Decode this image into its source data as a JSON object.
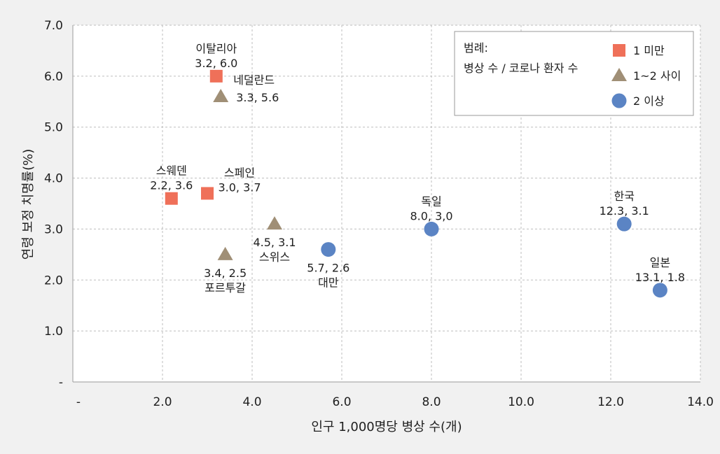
{
  "chart_data": {
    "type": "scatter",
    "title": "",
    "xlabel": "인구 1,000명당 병상 수(개)",
    "ylabel": "연령 보정 치명률(%)",
    "xlim": [
      0,
      14
    ],
    "ylim": [
      0,
      7
    ],
    "x_ticks": [
      {
        "value": 0,
        "label": "-"
      },
      {
        "value": 2,
        "label": "2.0"
      },
      {
        "value": 4,
        "label": "4.0"
      },
      {
        "value": 6,
        "label": "6.0"
      },
      {
        "value": 8,
        "label": "8.0"
      },
      {
        "value": 10,
        "label": "10.0"
      },
      {
        "value": 12,
        "label": "12.0"
      },
      {
        "value": 14,
        "label": "14.0"
      }
    ],
    "y_ticks": [
      {
        "value": 0,
        "label": "-"
      },
      {
        "value": 1,
        "label": "1.0"
      },
      {
        "value": 2,
        "label": "2.0"
      },
      {
        "value": 3,
        "label": "3.0"
      },
      {
        "value": 4,
        "label": "4.0"
      },
      {
        "value": 5,
        "label": "5.0"
      },
      {
        "value": 6,
        "label": "6.0"
      },
      {
        "value": 7,
        "label": "7.0"
      }
    ],
    "grid": true,
    "legend": {
      "position": "top-right",
      "title_line1": "범례:",
      "title_line2": "병상 수 / 코로나 환자 수",
      "entries": [
        {
          "key": "lt1",
          "label": "1 미만",
          "shape": "square",
          "color": "#ef7059"
        },
        {
          "key": "1to2",
          "label": "1~2 사이",
          "shape": "triangle",
          "color": "#a08f76"
        },
        {
          "key": "ge2",
          "label": "2 이상",
          "shape": "circle",
          "color": "#5b84c4"
        }
      ]
    },
    "points": [
      {
        "name": "이탈리아",
        "value_label": "3.2, 6.0",
        "x": 3.2,
        "y": 6.0,
        "group": "lt1",
        "label_pos": "above"
      },
      {
        "name": "네덜란드",
        "value_label": "3.3, 5.6",
        "x": 3.3,
        "y": 5.6,
        "group": "1to2",
        "label_pos": "right"
      },
      {
        "name": "스웨덴",
        "value_label": "2.2, 3.6",
        "x": 2.2,
        "y": 3.6,
        "group": "lt1",
        "label_pos": "above"
      },
      {
        "name": "스페인",
        "value_label": "3.0, 3.7",
        "x": 3.0,
        "y": 3.7,
        "group": "lt1",
        "label_pos": "upper-right"
      },
      {
        "name": "스위스",
        "value_label": "4.5, 3.1",
        "x": 4.5,
        "y": 3.1,
        "group": "1to2",
        "label_pos": "below"
      },
      {
        "name": "포르투갈",
        "value_label": "3.4, 2.5",
        "x": 3.4,
        "y": 2.5,
        "group": "1to2",
        "label_pos": "below"
      },
      {
        "name": "대만",
        "value_label": "5.7, 2.6",
        "x": 5.7,
        "y": 2.6,
        "group": "ge2",
        "label_pos": "below"
      },
      {
        "name": "독일",
        "value_label": "8.0, 3,0",
        "x": 8.0,
        "y": 3.0,
        "group": "ge2",
        "label_pos": "above"
      },
      {
        "name": "한국",
        "value_label": "12.3, 3.1",
        "x": 12.3,
        "y": 3.1,
        "group": "ge2",
        "label_pos": "above"
      },
      {
        "name": "일본",
        "value_label": "13.1, 1.8",
        "x": 13.1,
        "y": 1.8,
        "group": "ge2",
        "label_pos": "above"
      }
    ]
  }
}
